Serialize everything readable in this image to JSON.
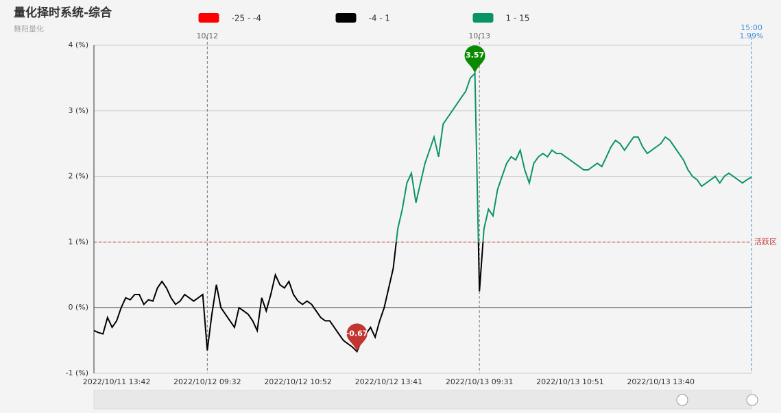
{
  "chart_data": {
    "type": "line",
    "title": "量化择时系统-综合",
    "subtitle": "舞阳量化",
    "categories": [
      null,
      null,
      null,
      null,
      null,
      "2022/10/11 13:42",
      null,
      null,
      null,
      null,
      null,
      null,
      null,
      null,
      null,
      null,
      null,
      null,
      null,
      null,
      null,
      null,
      null,
      null,
      null,
      "2022/10/12 09:32",
      null,
      null,
      null,
      null,
      null,
      null,
      null,
      null,
      null,
      null,
      null,
      null,
      null,
      null,
      null,
      null,
      null,
      null,
      null,
      "2022/10/12 10:52",
      null,
      null,
      null,
      null,
      null,
      null,
      null,
      null,
      null,
      null,
      null,
      null,
      null,
      null,
      null,
      null,
      null,
      null,
      null,
      "2022/10/12 13:41",
      null,
      null,
      null,
      null,
      null,
      null,
      null,
      null,
      null,
      null,
      null,
      null,
      null,
      null,
      null,
      null,
      null,
      null,
      null,
      "2022/10/13 09:31",
      null,
      null,
      null,
      null,
      null,
      null,
      null,
      null,
      null,
      null,
      null,
      null,
      null,
      null,
      null,
      null,
      null,
      null,
      null,
      "2022/10/13 10:51",
      null,
      null,
      null,
      null,
      null,
      null,
      null,
      null,
      null,
      null,
      null,
      null,
      null,
      null,
      null,
      null,
      null,
      null,
      null,
      "2022/10/13 13:40",
      null,
      null,
      null,
      null,
      null,
      null,
      null,
      null,
      null,
      null,
      null,
      null,
      null,
      null,
      null,
      null,
      null,
      null,
      null,
      null
    ],
    "values": [
      -0.35,
      -0.38,
      -0.4,
      -0.15,
      -0.3,
      -0.2,
      0.0,
      0.15,
      0.12,
      0.2,
      0.2,
      0.05,
      0.12,
      0.1,
      0.3,
      0.4,
      0.3,
      0.15,
      0.05,
      0.1,
      0.2,
      0.15,
      0.1,
      0.15,
      0.2,
      -0.65,
      -0.1,
      0.35,
      0.0,
      -0.1,
      -0.2,
      -0.3,
      0.0,
      -0.05,
      -0.1,
      -0.2,
      -0.35,
      0.15,
      -0.05,
      0.2,
      0.5,
      0.35,
      0.3,
      0.4,
      0.2,
      0.1,
      0.05,
      0.1,
      0.05,
      -0.05,
      -0.15,
      -0.2,
      -0.2,
      -0.3,
      -0.4,
      -0.5,
      -0.55,
      -0.6,
      -0.67,
      -0.5,
      -0.4,
      -0.3,
      -0.45,
      -0.2,
      0.0,
      0.3,
      0.6,
      1.2,
      1.5,
      1.9,
      2.05,
      1.6,
      1.9,
      2.2,
      2.4,
      2.6,
      2.3,
      2.8,
      2.9,
      3.0,
      3.1,
      3.2,
      3.3,
      3.5,
      3.57,
      0.25,
      1.2,
      1.5,
      1.4,
      1.8,
      2.0,
      2.2,
      2.3,
      2.25,
      2.4,
      2.1,
      1.9,
      2.2,
      2.3,
      2.35,
      2.3,
      2.4,
      2.35,
      2.35,
      2.3,
      2.25,
      2.2,
      2.15,
      2.1,
      2.1,
      2.15,
      2.2,
      2.15,
      2.3,
      2.45,
      2.55,
      2.5,
      2.4,
      2.5,
      2.6,
      2.6,
      2.45,
      2.35,
      2.4,
      2.45,
      2.5,
      2.6,
      2.55,
      2.45,
      2.35,
      2.25,
      2.1,
      2.0,
      1.95,
      1.85,
      1.9,
      1.95,
      2.0,
      1.9,
      2.0,
      2.05,
      2.0,
      1.95,
      1.9,
      1.95,
      1.99
    ],
    "ylim": [
      -1,
      4
    ],
    "yticks": [
      {
        "value": -1,
        "label": "-1 (%)"
      },
      {
        "value": 0,
        "label": "0 (%)"
      },
      {
        "value": 1,
        "label": "1 (%)"
      },
      {
        "value": 2,
        "label": "2 (%)"
      },
      {
        "value": 3,
        "label": "3 (%)"
      },
      {
        "value": 4,
        "label": "4 (%)"
      }
    ],
    "grid": true,
    "pieces": [
      {
        "min": -25,
        "max": -4,
        "color": "#ff0000",
        "label": "-25 - -4"
      },
      {
        "min": -4,
        "max": 1,
        "color": "#000000",
        "label": "-4 - 1"
      },
      {
        "min": 1,
        "max": 15,
        "color": "#0a9464",
        "label": "1 - 15"
      }
    ],
    "mark_points": [
      {
        "category": 84,
        "value": 3.57,
        "color": "#0a8a00"
      },
      {
        "category": 58,
        "value": -0.67,
        "color": "#c23531"
      }
    ],
    "mark_line_y": {
      "value": 1,
      "label": "活跃区",
      "color": "#c23531"
    },
    "mark_lines_x": [
      {
        "category": 25,
        "label": "10/12",
        "color": "#777777"
      },
      {
        "category": 85,
        "label": "10/13",
        "color": "#777777"
      },
      {
        "category": 145,
        "label": "15:00",
        "value": 1.99,
        "value_label": "1.99%",
        "color": "#3a8fd9"
      }
    ]
  }
}
